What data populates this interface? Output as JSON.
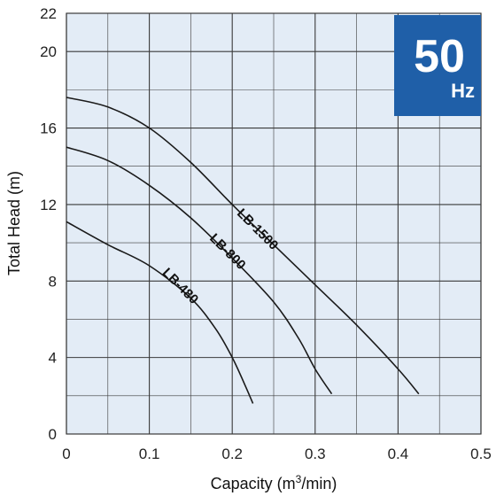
{
  "chart_data": {
    "type": "line",
    "xlabel_main": "Capacity (m",
    "xlabel_sup": "3",
    "xlabel_tail": "/min)",
    "ylabel": "Total Head (m)",
    "xlim": [
      0,
      0.5
    ],
    "ylim": [
      0,
      22
    ],
    "x_ticks": [
      0,
      0.1,
      0.2,
      0.3,
      0.4,
      0.5
    ],
    "x_tick_labels": [
      "0",
      "0.1",
      "0.2",
      "0.3",
      "0.4",
      "0.5"
    ],
    "y_ticks": [
      0,
      4,
      8,
      12,
      16,
      20,
      22
    ],
    "y_tick_labels": [
      "0",
      "4",
      "8",
      "12",
      "16",
      "20",
      "22"
    ],
    "grid": true,
    "plot_background": "#e3ecf6",
    "grid_color": "#3a3a3a",
    "series": [
      {
        "name": "LB-1500",
        "color": "#1a1a1a",
        "points": [
          [
            0,
            17.6
          ],
          [
            0.05,
            17.1
          ],
          [
            0.1,
            16.0
          ],
          [
            0.15,
            14.2
          ],
          [
            0.2,
            12.0
          ],
          [
            0.25,
            9.9
          ],
          [
            0.3,
            7.8
          ],
          [
            0.35,
            5.7
          ],
          [
            0.4,
            3.4
          ],
          [
            0.425,
            2.1
          ]
        ]
      },
      {
        "name": "LB-800",
        "color": "#1a1a1a",
        "points": [
          [
            0,
            15.0
          ],
          [
            0.05,
            14.3
          ],
          [
            0.1,
            13.0
          ],
          [
            0.15,
            11.3
          ],
          [
            0.2,
            9.2
          ],
          [
            0.25,
            6.9
          ],
          [
            0.28,
            5.0
          ],
          [
            0.3,
            3.4
          ],
          [
            0.32,
            2.1
          ]
        ]
      },
      {
        "name": "LB-480",
        "color": "#1a1a1a",
        "points": [
          [
            0,
            11.1
          ],
          [
            0.05,
            9.9
          ],
          [
            0.1,
            8.8
          ],
          [
            0.15,
            7.1
          ],
          [
            0.18,
            5.5
          ],
          [
            0.2,
            4.0
          ],
          [
            0.215,
            2.6
          ],
          [
            0.225,
            1.6
          ]
        ]
      }
    ],
    "badge": {
      "big": "50",
      "small": "Hz",
      "color": "#1f5fa8"
    }
  }
}
